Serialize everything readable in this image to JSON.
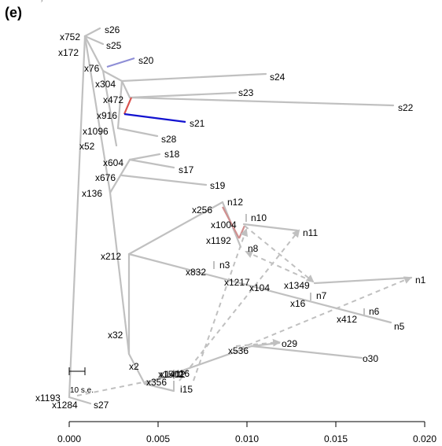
{
  "panel_label": "(e)",
  "scale_bar_label": "10 s.e.",
  "x_axis": {
    "range": [
      0.0,
      0.0205
    ],
    "ticks": [
      {
        "value": 0.0,
        "label": "0.000"
      },
      {
        "value": 0.005,
        "label": "0.005"
      },
      {
        "value": 0.01,
        "label": "0.010"
      },
      {
        "value": 0.015,
        "label": "0.015"
      },
      {
        "value": 0.02,
        "label": "0.020"
      }
    ]
  },
  "colors": {
    "tree": "#c0c0c0",
    "migration_red": "#d9534f",
    "migration_pink": "#d08f8f",
    "migration_blue": "#1212d0",
    "migration_lightblue": "#8e8ed6"
  },
  "nodes": {
    "x1193": {
      "label": "x1193"
    },
    "x1284": {
      "label": "x1284"
    },
    "s27": {
      "label": "s27"
    },
    "x752": {
      "label": "x752"
    },
    "x172": {
      "label": "x172"
    },
    "s26": {
      "label": "s26"
    },
    "s25": {
      "label": "s25"
    },
    "x76": {
      "label": "x76"
    },
    "s20": {
      "label": "s20"
    },
    "x304": {
      "label": "x304"
    },
    "s24": {
      "label": "s24"
    },
    "x472": {
      "label": "x472"
    },
    "s23": {
      "label": "s23"
    },
    "s22": {
      "label": "s22"
    },
    "x916": {
      "label": "x916"
    },
    "s21": {
      "label": "s21"
    },
    "x1096": {
      "label": "x1096"
    },
    "s28": {
      "label": "s28"
    },
    "x52": {
      "label": "x52"
    },
    "x604": {
      "label": "x604"
    },
    "s18": {
      "label": "s18"
    },
    "s17": {
      "label": "s17"
    },
    "x676": {
      "label": "x676"
    },
    "s19": {
      "label": "s19"
    },
    "x136": {
      "label": "x136"
    },
    "x256": {
      "label": "x256"
    },
    "n12": {
      "label": "n12"
    },
    "x1004": {
      "label": "x1004"
    },
    "n10": {
      "label": "n10"
    },
    "n11": {
      "label": "n11"
    },
    "x1192": {
      "label": "x1192"
    },
    "n8": {
      "label": "n8"
    },
    "x212": {
      "label": "x212"
    },
    "x832": {
      "label": "x832"
    },
    "n3": {
      "label": "n3"
    },
    "x1217": {
      "label": "x1217"
    },
    "x104": {
      "label": "x104"
    },
    "x1349": {
      "label": "x1349"
    },
    "n1": {
      "label": "n1"
    },
    "n7": {
      "label": "n7"
    },
    "x16": {
      "label": "x16"
    },
    "n6": {
      "label": "n6"
    },
    "x412": {
      "label": "x412"
    },
    "n5": {
      "label": "n5"
    },
    "x32": {
      "label": "x32"
    },
    "x536": {
      "label": "x536"
    },
    "o29": {
      "label": "o29"
    },
    "o30": {
      "label": "o30"
    },
    "x2": {
      "label": "x2"
    },
    "x1502": {
      "label": "x1502"
    },
    "x1402": {
      "label": "x1402"
    },
    "i16": {
      "label": "i16"
    },
    "x356": {
      "label": "x356"
    },
    "i15": {
      "label": "i15"
    }
  }
}
